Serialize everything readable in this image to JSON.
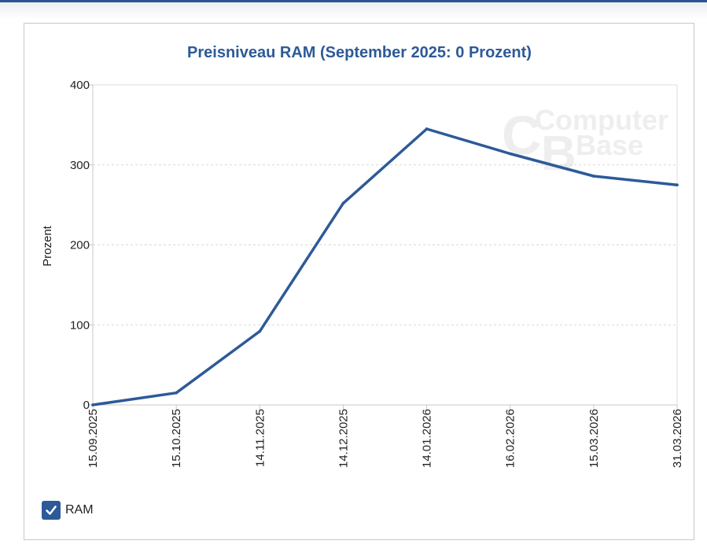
{
  "chart_data": {
    "type": "line",
    "title": "Preisniveau RAM (September 2025: 0 Prozent)",
    "xlabel": "",
    "ylabel": "Prozent",
    "ylim": [
      0,
      400
    ],
    "yticks": [
      0,
      100,
      200,
      300,
      400
    ],
    "grid": true,
    "categories": [
      "15.09.2025",
      "15.10.2025",
      "14.11.2025",
      "14.12.2025",
      "14.01.2026",
      "16.02.2026",
      "15.03.2026",
      "31.03.2026"
    ],
    "series": [
      {
        "name": "RAM",
        "color": "#2d5a98",
        "values": [
          0,
          15,
          92,
          252,
          345,
          314,
          286,
          275
        ]
      }
    ],
    "legend_position": "bottom-left",
    "watermark": [
      "Computer",
      "Base"
    ]
  },
  "legend": {
    "checked": true,
    "checkbox_icon": "checkmark-icon"
  }
}
